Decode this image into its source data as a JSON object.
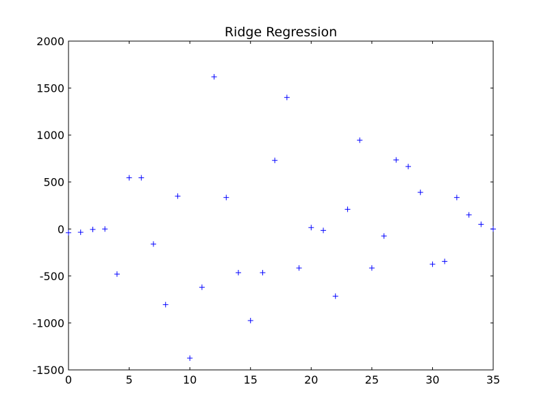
{
  "chart_data": {
    "type": "scatter",
    "title": "Ridge Regression",
    "xlabel": "",
    "ylabel": "",
    "xlim": [
      0,
      35
    ],
    "ylim": [
      -1500,
      2000
    ],
    "xticks": [
      0,
      5,
      10,
      15,
      20,
      25,
      30,
      35
    ],
    "yticks": [
      -1500,
      -1000,
      -500,
      0,
      500,
      1000,
      1500,
      2000
    ],
    "grid": false,
    "marker": "+",
    "color": "#0000ff",
    "series": [
      {
        "x": [
          0,
          1,
          2,
          3,
          4,
          5,
          6,
          7,
          8,
          9,
          10,
          11,
          12,
          13,
          14,
          15,
          16,
          17,
          18,
          19,
          20,
          21,
          22,
          23,
          24,
          25,
          26,
          27,
          28,
          29,
          30,
          31,
          32,
          33,
          34,
          35
        ],
        "y": [
          -40,
          -35,
          -5,
          0,
          -480,
          545,
          545,
          -160,
          -805,
          350,
          -1375,
          -620,
          1620,
          335,
          -465,
          -975,
          -465,
          730,
          1400,
          -415,
          15,
          -15,
          -715,
          210,
          945,
          -415,
          -75,
          735,
          665,
          390,
          -375,
          -345,
          335,
          150,
          50,
          0
        ]
      }
    ]
  }
}
